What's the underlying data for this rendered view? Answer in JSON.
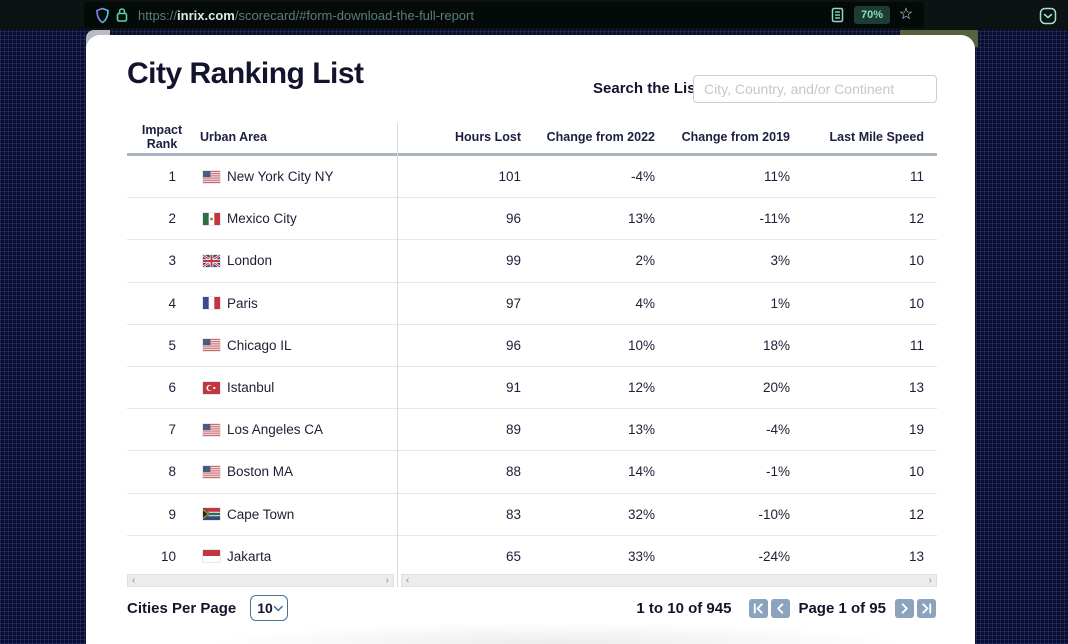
{
  "browser": {
    "url_prefix": "https://",
    "url_domain": "inrix.com",
    "url_path": "/scorecard/#form-download-the-full-report",
    "zoom_badge": "70%",
    "star_glyph": "☆"
  },
  "page": {
    "title": "City Ranking List",
    "search_label": "Search the List",
    "search_placeholder": "City, Country, and/or Continent"
  },
  "table": {
    "headers": {
      "rank_line1": "Impact",
      "rank_line2": "Rank",
      "urban_area": "Urban Area",
      "hours_lost": "Hours Lost",
      "change_2022": "Change from 2022",
      "change_2019": "Change from 2019",
      "last_mile": "Last Mile Speed"
    },
    "rows": [
      {
        "rank": "1",
        "flag": "us",
        "city": "New York City NY",
        "hours_lost": "101",
        "change_2022": "-4%",
        "change_2019": "11%",
        "last_mile": "11"
      },
      {
        "rank": "2",
        "flag": "mx",
        "city": "Mexico City",
        "hours_lost": "96",
        "change_2022": "13%",
        "change_2019": "-11%",
        "last_mile": "12"
      },
      {
        "rank": "3",
        "flag": "gb",
        "city": "London",
        "hours_lost": "99",
        "change_2022": "2%",
        "change_2019": "3%",
        "last_mile": "10"
      },
      {
        "rank": "4",
        "flag": "fr",
        "city": "Paris",
        "hours_lost": "97",
        "change_2022": "4%",
        "change_2019": "1%",
        "last_mile": "10"
      },
      {
        "rank": "5",
        "flag": "us",
        "city": "Chicago IL",
        "hours_lost": "96",
        "change_2022": "10%",
        "change_2019": "18%",
        "last_mile": "11"
      },
      {
        "rank": "6",
        "flag": "tr",
        "city": "Istanbul",
        "hours_lost": "91",
        "change_2022": "12%",
        "change_2019": "20%",
        "last_mile": "13"
      },
      {
        "rank": "7",
        "flag": "us",
        "city": "Los Angeles CA",
        "hours_lost": "89",
        "change_2022": "13%",
        "change_2019": "-4%",
        "last_mile": "19"
      },
      {
        "rank": "8",
        "flag": "us",
        "city": "Boston MA",
        "hours_lost": "88",
        "change_2022": "14%",
        "change_2019": "-1%",
        "last_mile": "10"
      },
      {
        "rank": "9",
        "flag": "za",
        "city": "Cape Town",
        "hours_lost": "83",
        "change_2022": "32%",
        "change_2019": "-10%",
        "last_mile": "12"
      },
      {
        "rank": "10",
        "flag": "id",
        "city": "Jakarta",
        "hours_lost": "65",
        "change_2022": "33%",
        "change_2019": "-24%",
        "last_mile": "13"
      }
    ]
  },
  "scrollbars": {
    "left_arrow": "‹",
    "right_arrow": "›"
  },
  "footer": {
    "per_page_label": "Cities Per Page",
    "per_page_value": "10",
    "range_text": "1 to 10 of 945",
    "page_text": "Page 1 of 95"
  },
  "colors": {
    "accent_navy": "#13132e",
    "pager_button": "#8ba3bd",
    "zoom_badge_bg": "#1d3c33",
    "zoom_badge_text": "#8bd9bd",
    "background_navy": "#0a0e2c"
  }
}
